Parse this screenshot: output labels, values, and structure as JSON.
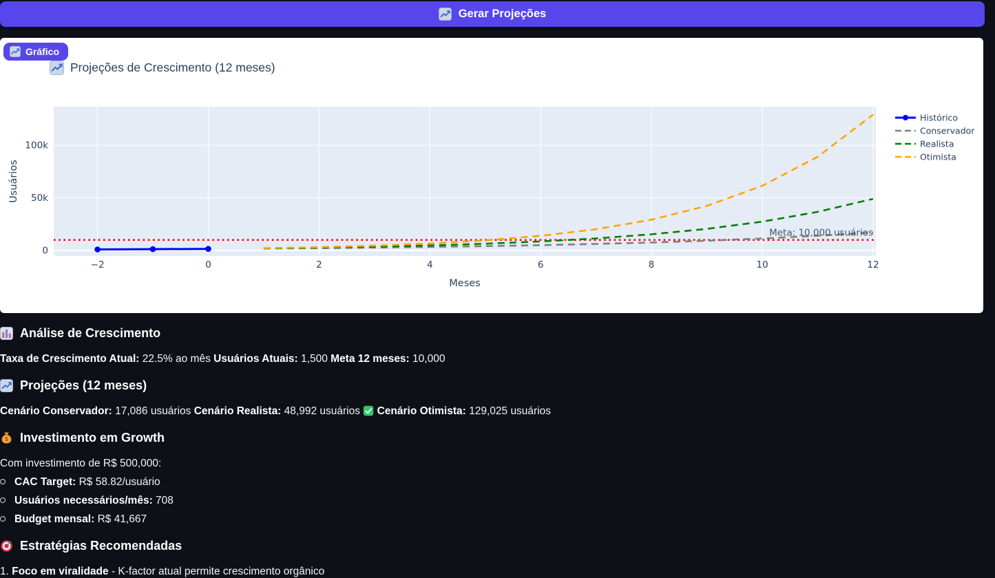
{
  "theme": {
    "accent": "#5746ec",
    "page_bg": "#0d1016",
    "card_bg": "#ffffff",
    "chart_font": "#2a3f5f",
    "plot_bg": "#e5ecf6"
  },
  "header": {
    "generate_button": {
      "icon": "chart-increasing",
      "label": "Gerar Projeções"
    }
  },
  "chart_card": {
    "badge": {
      "icon": "chart-increasing",
      "label": "Gráfico"
    },
    "title": {
      "icon": "chart-increasing",
      "text": "Projeções de Crescimento (12 meses)"
    }
  },
  "chart_data": {
    "type": "line",
    "title": "Projeções de Crescimento (12 meses)",
    "xlabel": "Meses",
    "ylabel": "Usuários",
    "xlim": [
      -2.79,
      12.05
    ],
    "ylim": [
      -5230,
      136600
    ],
    "grid": true,
    "legend_position": "right",
    "plot_bg": "#e5ecf6",
    "grid_color": "#ffffff",
    "tick_color": "#2a3f5f",
    "xticks": [
      {
        "v": -2,
        "label": "−2"
      },
      {
        "v": 0,
        "label": "0"
      },
      {
        "v": 2,
        "label": "2"
      },
      {
        "v": 4,
        "label": "4"
      },
      {
        "v": 6,
        "label": "6"
      },
      {
        "v": 8,
        "label": "8"
      },
      {
        "v": 10,
        "label": "10"
      },
      {
        "v": 12,
        "label": "12"
      }
    ],
    "yticks": [
      {
        "v": 0,
        "label": "0"
      },
      {
        "v": 50000,
        "label": "50k"
      },
      {
        "v": 100000,
        "label": "100k"
      }
    ],
    "series": [
      {
        "name": "Histórico",
        "color": "#0000ff",
        "dash": "solid",
        "markers": true,
        "x": [
          -2,
          -1,
          0
        ],
        "y": [
          1000,
          1224,
          1500
        ]
      },
      {
        "name": "Conservador",
        "color": "#7f7f7f",
        "dash": "dash",
        "markers": false,
        "x": [
          1,
          2,
          3,
          4,
          5,
          6,
          7,
          8,
          9,
          10,
          11,
          12
        ],
        "y": [
          1837,
          2250,
          2756,
          3375,
          4134,
          5064,
          6202,
          7595,
          9302,
          11393,
          13954,
          17086
        ]
      },
      {
        "name": "Realista",
        "color": "#008000",
        "dash": "dash",
        "markers": false,
        "x": [
          1,
          2,
          3,
          4,
          5,
          6,
          7,
          8,
          9,
          10,
          11,
          12
        ],
        "y": [
          2006,
          2682,
          3586,
          4795,
          6412,
          8574,
          11465,
          15330,
          20498,
          27409,
          36649,
          48992
        ]
      },
      {
        "name": "Otimista",
        "color": "#ffa500",
        "dash": "dash",
        "markers": false,
        "x": [
          1,
          2,
          3,
          4,
          5,
          6,
          7,
          8,
          9,
          10,
          11,
          12
        ],
        "y": [
          2174,
          3152,
          4568,
          6621,
          9598,
          13913,
          20167,
          29231,
          42370,
          61416,
          89021,
          129025
        ]
      }
    ],
    "meta_line": {
      "y": 10000,
      "color": "#ff0000",
      "dash": "dot",
      "annotation": "Meta: 10,000 usuários",
      "annotation_color": "#45536b"
    }
  },
  "report": {
    "sections": [
      {
        "icon": "bar-chart",
        "heading": "Análise de Crescimento",
        "lines": [
          [
            {
              "b": "Taxa de Crescimento Atual:"
            },
            {
              "t": " 22.5% ao mês "
            },
            {
              "b": "Usuários Atuais:"
            },
            {
              "t": " 1,500 "
            },
            {
              "b": "Meta 12 meses:"
            },
            {
              "t": " 10,000"
            }
          ]
        ]
      },
      {
        "icon": "chart-increasing",
        "heading": "Projeções (12 meses)",
        "lines": [
          [
            {
              "b": "Cenário Conservador:"
            },
            {
              "t": " 17,086 usuários "
            },
            {
              "b": "Cenário Realista:"
            },
            {
              "t": " 48,992 usuários "
            },
            {
              "icon": "check"
            },
            {
              "t": " "
            },
            {
              "b": "Cenário Otimista:"
            },
            {
              "t": " 129,025 usuários"
            }
          ]
        ]
      },
      {
        "icon": "money-bag",
        "heading": "Investimento em Growth",
        "lines": [
          [
            {
              "t": "Com investimento de R$ 500,000:"
            }
          ]
        ],
        "bullets": [
          [
            {
              "b": "CAC Target:"
            },
            {
              "t": " R$ 58.82/usuário"
            }
          ],
          [
            {
              "b": "Usuários necessários/mês:"
            },
            {
              "t": " 708"
            }
          ],
          [
            {
              "b": "Budget mensal:"
            },
            {
              "t": " R$ 41,667"
            }
          ]
        ]
      },
      {
        "icon": "target",
        "heading": "Estratégias Recomendadas",
        "lines": [
          [
            {
              "t": "1. "
            },
            {
              "b": "Foco em viralidade"
            },
            {
              "t": " - K-factor atual permite crescimento orgânico"
            }
          ]
        ]
      }
    ]
  }
}
